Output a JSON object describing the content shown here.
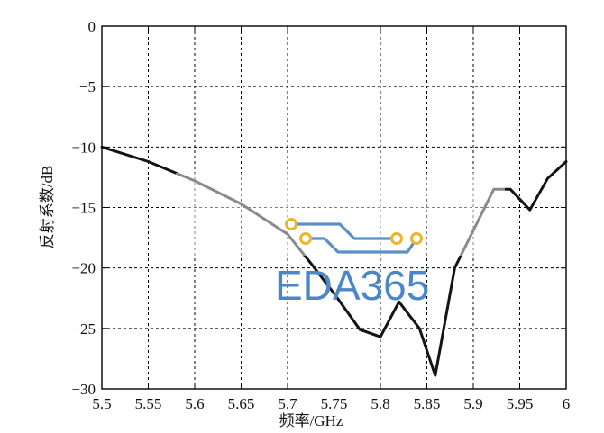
{
  "chart_data": {
    "type": "line",
    "title": "",
    "xlabel": "频率/GHz",
    "ylabel": "反射系数/dB",
    "xlim": [
      5.5,
      6.0
    ],
    "ylim": [
      -30,
      0
    ],
    "xtick_labels": [
      "5.5",
      "5.55",
      "5.6",
      "5.65",
      "5.7",
      "5.75",
      "5.8",
      "5.85",
      "5.9",
      "5.95",
      "6"
    ],
    "ytick_labels": [
      "0",
      "−5",
      "−10",
      "−15",
      "−20",
      "−25",
      "−30"
    ],
    "grid": true,
    "series": [
      {
        "color": "#141414",
        "x": [
          5.5,
          5.55,
          5.6,
          5.65,
          5.7,
          5.725,
          5.75,
          5.778,
          5.8,
          5.82,
          5.842,
          5.859,
          5.88,
          5.922,
          5.94,
          5.961,
          5.98,
          6.0
        ],
        "y": [
          -10.0,
          -11.2,
          -12.8,
          -14.7,
          -17.2,
          -19.6,
          -22.1,
          -25.1,
          -25.7,
          -22.8,
          -25.0,
          -28.9,
          -20.0,
          -13.5,
          -13.5,
          -15.2,
          -12.6,
          -11.2
        ]
      }
    ]
  },
  "watermark": {
    "text": "EDA365",
    "text_color": "#4b87c8",
    "trace_color": "#5b8fc7",
    "pad_color": "#f0b429"
  }
}
